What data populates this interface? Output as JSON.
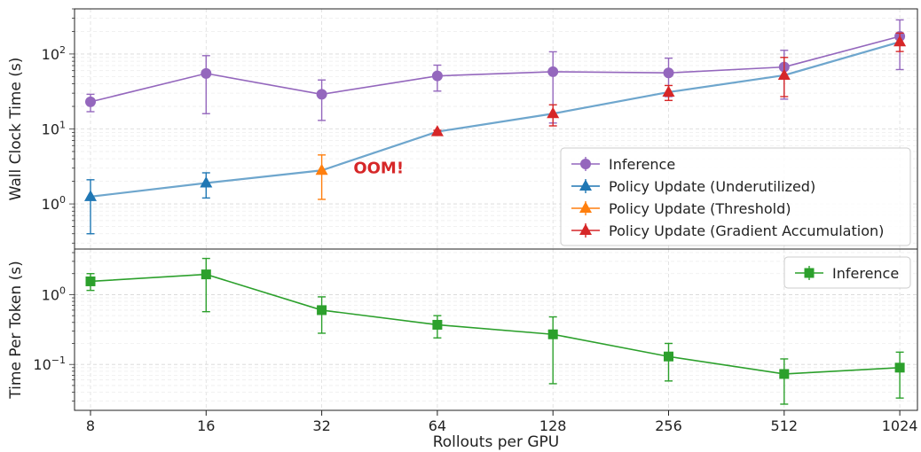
{
  "chart_data": [
    {
      "type": "line",
      "panel": "top",
      "ylabel": "Wall Clock Time (s)",
      "yscale": "log",
      "ylim": [
        0.25,
        400
      ],
      "y_ticks": [
        {
          "value": 1,
          "label": "10^0"
        },
        {
          "value": 10,
          "label": "10^1"
        },
        {
          "value": 100,
          "label": "10^2"
        }
      ],
      "grid": true,
      "legend_position": "lower-right",
      "annotation": {
        "text": "OOM!",
        "x": 45,
        "y": 3.0,
        "color": "#d62728"
      },
      "series": [
        {
          "name": "Inference",
          "color": "#9467bd",
          "marker": "circle",
          "x": [
            8,
            16,
            32,
            64,
            128,
            256,
            512,
            1024
          ],
          "y": [
            23,
            55,
            29,
            51,
            58,
            56,
            67,
            172
          ],
          "err_low": [
            17,
            16,
            13,
            32,
            12,
            27,
            25,
            62
          ],
          "err_high": [
            29,
            95,
            45,
            71,
            107,
            88,
            112,
            285
          ]
        },
        {
          "name": "Policy Update (Underutilized)",
          "color": "#1f77b4",
          "marker": "triangle",
          "x": [
            8,
            16
          ],
          "y": [
            1.25,
            1.9
          ],
          "err_low": [
            0.4,
            1.2
          ],
          "err_high": [
            2.1,
            2.6
          ]
        },
        {
          "name": "Policy Update (Threshold)",
          "color": "#ff7f0e",
          "marker": "triangle",
          "x": [
            32
          ],
          "y": [
            2.8
          ],
          "err_low": [
            1.15
          ],
          "err_high": [
            4.5
          ]
        },
        {
          "name": "Policy Update (Gradient Accumulation)",
          "color": "#d62728",
          "marker": "triangle",
          "x": [
            64,
            128,
            256,
            512,
            1024
          ],
          "y": [
            9.2,
            16,
            31,
            52,
            145
          ],
          "err_low": [
            8.8,
            11,
            24,
            27,
            108
          ],
          "err_high": [
            9.6,
            21,
            38,
            90,
            190
          ]
        }
      ],
      "trend_line": {
        "color": "#6ea6cd",
        "x": [
          8,
          16,
          32,
          64,
          128,
          256,
          512,
          1024
        ],
        "y": [
          1.25,
          1.9,
          2.8,
          9.2,
          16,
          31,
          52,
          145
        ]
      }
    },
    {
      "type": "line",
      "panel": "bottom",
      "xlabel": "Rollouts per GPU",
      "ylabel": "Time Per Token (s)",
      "xscale": "log2",
      "x_ticks": [
        8,
        16,
        32,
        64,
        128,
        256,
        512,
        1024
      ],
      "yscale": "log",
      "ylim": [
        0.022,
        4.5
      ],
      "y_ticks": [
        {
          "value": 0.1,
          "label": "10^-1"
        },
        {
          "value": 1,
          "label": "10^0"
        }
      ],
      "grid": true,
      "legend_position": "upper-right",
      "series": [
        {
          "name": "Inference",
          "color": "#2ca02c",
          "marker": "square",
          "x": [
            8,
            16,
            32,
            64,
            128,
            256,
            512,
            1024
          ],
          "y": [
            1.55,
            1.95,
            0.6,
            0.37,
            0.27,
            0.13,
            0.073,
            0.09
          ],
          "err_low": [
            1.15,
            0.57,
            0.28,
            0.24,
            0.053,
            0.058,
            0.027,
            0.033
          ],
          "err_high": [
            2.0,
            3.3,
            0.93,
            0.5,
            0.48,
            0.2,
            0.12,
            0.15
          ]
        }
      ]
    }
  ]
}
